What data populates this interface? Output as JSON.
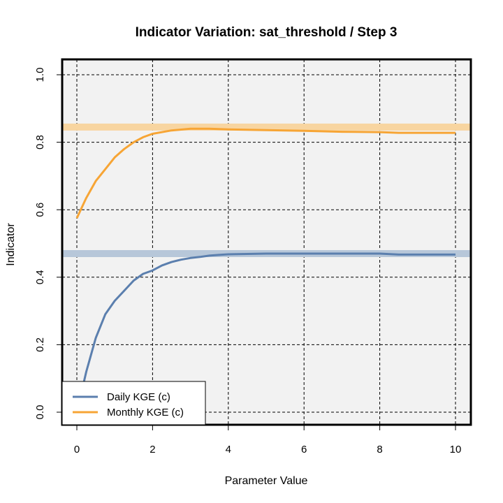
{
  "chart_data": {
    "type": "line",
    "title": "Indicator Variation: sat_threshold / Step 3",
    "xlabel": "Parameter Value",
    "ylabel": "Indicator",
    "xlim": [
      0,
      10
    ],
    "ylim": [
      0,
      1
    ],
    "x_ticks": [
      "0",
      "2",
      "4",
      "6",
      "8",
      "10"
    ],
    "y_ticks": [
      "0.0",
      "0.2",
      "0.4",
      "0.6",
      "0.8",
      "1.0"
    ],
    "grid": true,
    "legend_position": "bottom-left",
    "background": "#f2f2f2",
    "reference_bands": [
      {
        "value": 0.47,
        "color": "#b7c7d9"
      },
      {
        "value": 0.845,
        "color": "#f8d5a0"
      }
    ],
    "series": [
      {
        "name": "Daily KGE (c)",
        "color": "#5b7fae",
        "x": [
          0.0,
          0.25,
          0.5,
          0.75,
          1.0,
          1.25,
          1.5,
          1.75,
          2.0,
          2.25,
          2.5,
          2.75,
          3.0,
          3.25,
          3.5,
          3.75,
          4.0,
          4.5,
          5.0,
          6.0,
          7.0,
          8.0,
          8.5,
          9.0,
          10.0
        ],
        "y": [
          0.0,
          0.12,
          0.22,
          0.29,
          0.33,
          0.36,
          0.39,
          0.41,
          0.42,
          0.435,
          0.445,
          0.452,
          0.457,
          0.46,
          0.464,
          0.466,
          0.468,
          0.469,
          0.47,
          0.47,
          0.47,
          0.47,
          0.467,
          0.467,
          0.467
        ]
      },
      {
        "name": "Monthly KGE (c)",
        "color": "#f7a535",
        "x": [
          0.0,
          0.25,
          0.5,
          0.75,
          1.0,
          1.25,
          1.5,
          1.75,
          2.0,
          2.5,
          3.0,
          3.5,
          4.0,
          5.0,
          6.0,
          7.0,
          8.0,
          8.5,
          9.0,
          10.0
        ],
        "y": [
          0.575,
          0.635,
          0.685,
          0.72,
          0.755,
          0.78,
          0.8,
          0.815,
          0.825,
          0.835,
          0.84,
          0.84,
          0.838,
          0.836,
          0.834,
          0.831,
          0.83,
          0.828,
          0.828,
          0.828
        ]
      }
    ]
  }
}
